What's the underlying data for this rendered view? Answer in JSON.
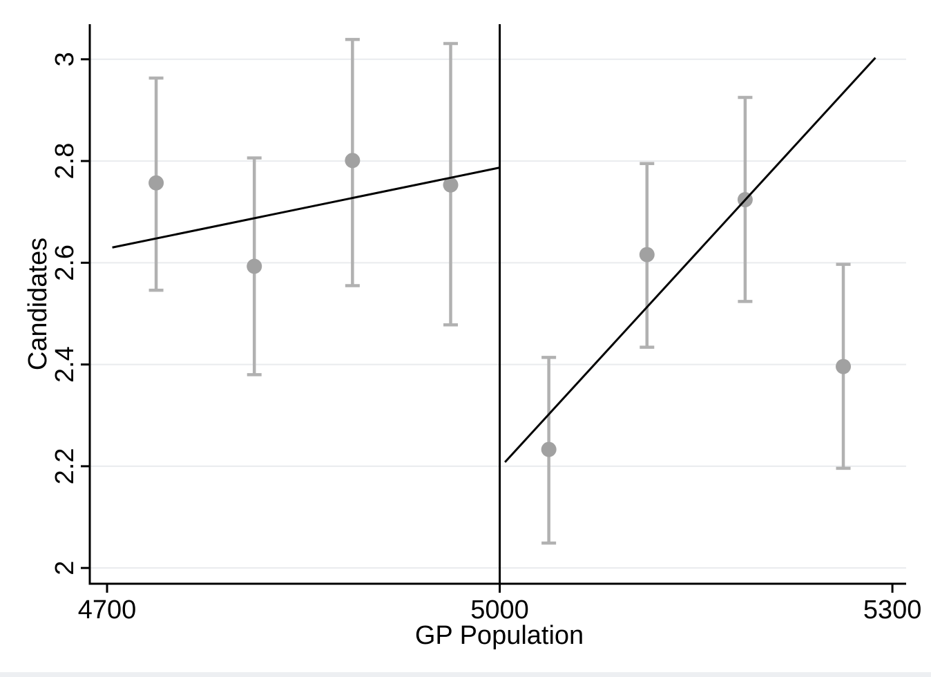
{
  "figure": {
    "background_color": "#ffffff",
    "bottom_strip_color": "#edeff2"
  },
  "chart_data": {
    "type": "scatter",
    "subtype": "regression-discontinuity-binned-scatter",
    "title": "",
    "xlabel": "GP Population",
    "ylabel": "Candidates",
    "grid": true,
    "legend": "none",
    "xlim": [
      4686.8,
      5310.5
    ],
    "ylim": [
      1.969,
      3.069
    ],
    "x_ticks": [
      {
        "v": 4700,
        "label": "4700"
      },
      {
        "v": 5000,
        "label": "5000"
      },
      {
        "v": 5300,
        "label": "5300"
      }
    ],
    "y_ticks": [
      {
        "v": 2,
        "label": "2"
      },
      {
        "v": 2.2,
        "label": "2.2"
      },
      {
        "v": 2.4,
        "label": "2.4"
      },
      {
        "v": 2.6,
        "label": "2.6"
      },
      {
        "v": 2.8,
        "label": "2.8"
      },
      {
        "v": 3,
        "label": "3"
      }
    ],
    "cutoff_x": 5000,
    "points": [
      {
        "x": 4737.5,
        "y": 2.757,
        "ci_lo": 2.546,
        "ci_hi": 2.963
      },
      {
        "x": 4812.5,
        "y": 2.593,
        "ci_lo": 2.38,
        "ci_hi": 2.806
      },
      {
        "x": 4887.5,
        "y": 2.801,
        "ci_lo": 2.555,
        "ci_hi": 3.039
      },
      {
        "x": 4962.5,
        "y": 2.753,
        "ci_lo": 2.478,
        "ci_hi": 3.031
      },
      {
        "x": 5037.5,
        "y": 2.233,
        "ci_lo": 2.049,
        "ci_hi": 2.414
      },
      {
        "x": 5112.5,
        "y": 2.616,
        "ci_lo": 2.434,
        "ci_hi": 2.795
      },
      {
        "x": 5187.5,
        "y": 2.724,
        "ci_lo": 2.524,
        "ci_hi": 2.925
      },
      {
        "x": 5262.5,
        "y": 2.396,
        "ci_lo": 2.196,
        "ci_hi": 2.597
      }
    ],
    "fit_lines": [
      {
        "side": "left",
        "x1": 4704,
        "y1": 2.63,
        "x2": 5000,
        "y2": 2.787
      },
      {
        "side": "right",
        "x1": 5004,
        "y1": 2.208,
        "x2": 5287,
        "y2": 3.003
      }
    ],
    "colors": {
      "point": "#a1a1a1",
      "ci_bar": "#b1b1b1",
      "fit_line": "#000000",
      "cutoff_line": "#000000",
      "axis": "#000000",
      "grid_line": "#e9ebee",
      "text": "#000000"
    }
  }
}
